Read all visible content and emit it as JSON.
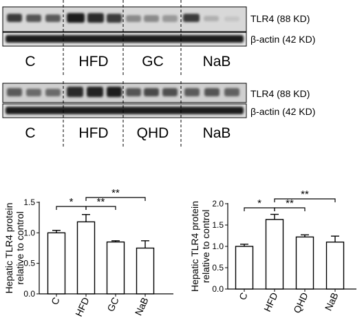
{
  "blots": [
    {
      "rows": [
        {
          "label": "TLR4 (88 KD)"
        },
        {
          "label": "β-actin (42 KD)"
        }
      ],
      "groups": [
        "C",
        "HFD",
        "GC",
        "NaB"
      ]
    },
    {
      "rows": [
        {
          "label": "TLR4 (88 KD)"
        },
        {
          "label": "β-actin (42 KD)"
        }
      ],
      "groups": [
        "C",
        "HFD",
        "QHD",
        "NaB"
      ]
    }
  ],
  "chart_data": [
    {
      "type": "bar",
      "title": "",
      "xlabel": "",
      "ylabel": "Hepatic TLR4 protein relative to control",
      "categories": [
        "C",
        "HFD",
        "GC",
        "NaB"
      ],
      "values": [
        1.0,
        1.18,
        0.85,
        0.75
      ],
      "errors": [
        0.04,
        0.12,
        0.02,
        0.12
      ],
      "ylim": [
        0,
        1.5
      ],
      "yticks": [
        "0.0",
        "0.5",
        "1.0",
        "1.5"
      ],
      "significance": [
        {
          "from": "C",
          "to": "HFD",
          "label": "*"
        },
        {
          "from": "HFD",
          "to": "GC",
          "label": "**"
        },
        {
          "from": "HFD",
          "to": "NaB",
          "label": "**"
        }
      ]
    },
    {
      "type": "bar",
      "title": "",
      "xlabel": "",
      "ylabel": "Hepatic TLR4 protein relative to control",
      "categories": [
        "C",
        "HFD",
        "QHD",
        "NaB"
      ],
      "values": [
        1.0,
        1.63,
        1.22,
        1.1
      ],
      "errors": [
        0.05,
        0.12,
        0.05,
        0.14
      ],
      "ylim": [
        0,
        2.0
      ],
      "yticks": [
        "0.0",
        "0.5",
        "1.0",
        "1.5",
        "2.0"
      ],
      "significance": [
        {
          "from": "C",
          "to": "HFD",
          "label": "*"
        },
        {
          "from": "HFD",
          "to": "QHD",
          "label": "**"
        },
        {
          "from": "HFD",
          "to": "NaB",
          "label": "**"
        }
      ]
    }
  ]
}
